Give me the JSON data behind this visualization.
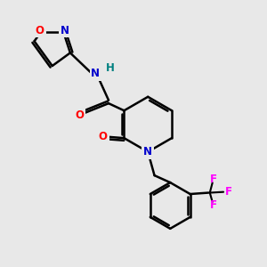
{
  "bg_color": "#e8e8e8",
  "atom_colors": {
    "N": "#0000cc",
    "O": "#ff0000",
    "F": "#ff00ff",
    "H": "#008080"
  },
  "bond_color": "#000000",
  "bond_width": 1.8,
  "fig_width": 3.0,
  "fig_height": 3.0,
  "xlim": [
    0,
    10
  ],
  "ylim": [
    0,
    10
  ]
}
